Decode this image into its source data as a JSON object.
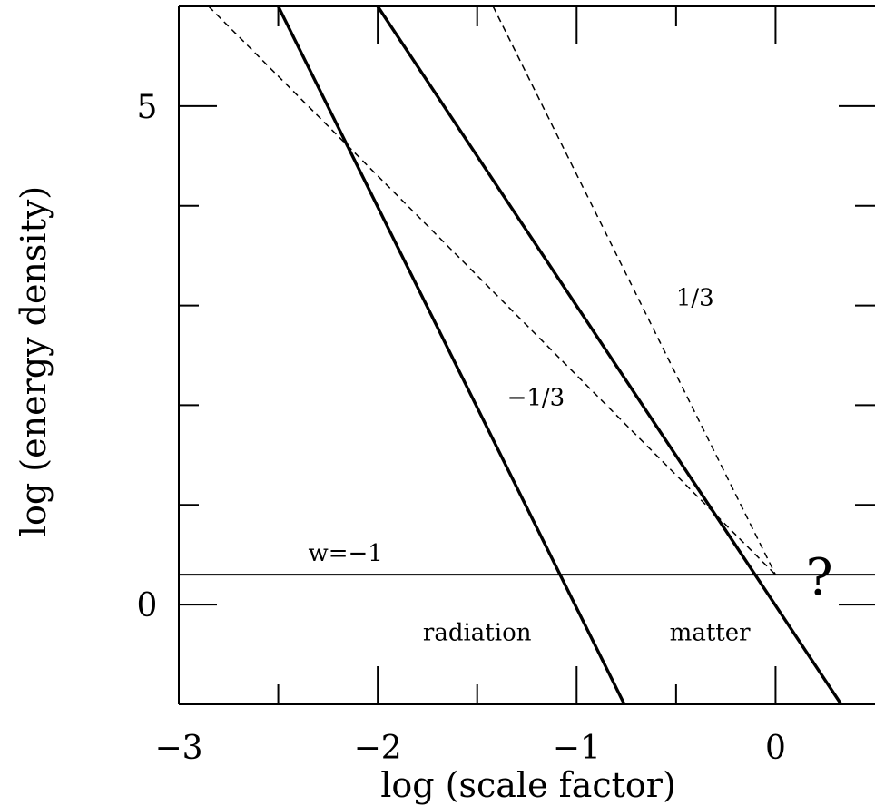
{
  "chart_data": {
    "type": "line",
    "xlabel": "log (scale factor)",
    "ylabel": "log (energy density)",
    "xlim": [
      -3,
      0.5
    ],
    "ylim": [
      -1,
      6
    ],
    "x_ticks": [
      {
        "value": -3,
        "label": "−3"
      },
      {
        "value": -2,
        "label": "−2"
      },
      {
        "value": -1,
        "label": "−1"
      },
      {
        "value": 0,
        "label": "0"
      }
    ],
    "x_minor_ticks": [
      -2.5,
      -1.5,
      -0.5
    ],
    "y_ticks": [
      {
        "value": 0,
        "label": "0"
      },
      {
        "value": 5,
        "label": "5"
      }
    ],
    "y_minor_ticks": [
      1,
      2,
      3,
      4
    ],
    "series": [
      {
        "name": "radiation",
        "style": "solid-thick",
        "x": [
          -2.5,
          -0.76
        ],
        "y": [
          6,
          -1
        ]
      },
      {
        "name": "matter",
        "style": "solid-thick",
        "x": [
          -2.0,
          0.33
        ],
        "y": [
          6,
          -1
        ]
      },
      {
        "name": "w=−1",
        "style": "solid-thin",
        "x": [
          -3,
          0.5
        ],
        "y": [
          0.3,
          0.3
        ]
      },
      {
        "name": "1/3",
        "style": "dashed",
        "x": [
          -1.42,
          0.0
        ],
        "y": [
          6,
          0.3
        ]
      },
      {
        "name": "−1/3",
        "style": "dashed",
        "x": [
          -2.85,
          0.0
        ],
        "y": [
          6,
          0.3
        ]
      }
    ],
    "annotations": [
      {
        "text": "1/3",
        "x": -0.5,
        "y": 3.0,
        "anchor": "start"
      },
      {
        "text": "−1/3",
        "x": -1.35,
        "y": 2.0,
        "anchor": "start"
      },
      {
        "text": "w=−1",
        "x": -2.35,
        "y": 0.44,
        "anchor": "start"
      },
      {
        "text": "radiation",
        "x": -1.5,
        "y": -0.36,
        "anchor": "middle"
      },
      {
        "text": "matter",
        "x": -0.33,
        "y": -0.36,
        "anchor": "middle"
      }
    ],
    "question_mark": {
      "text": "?",
      "x": 0.22,
      "y": 0.1
    }
  }
}
